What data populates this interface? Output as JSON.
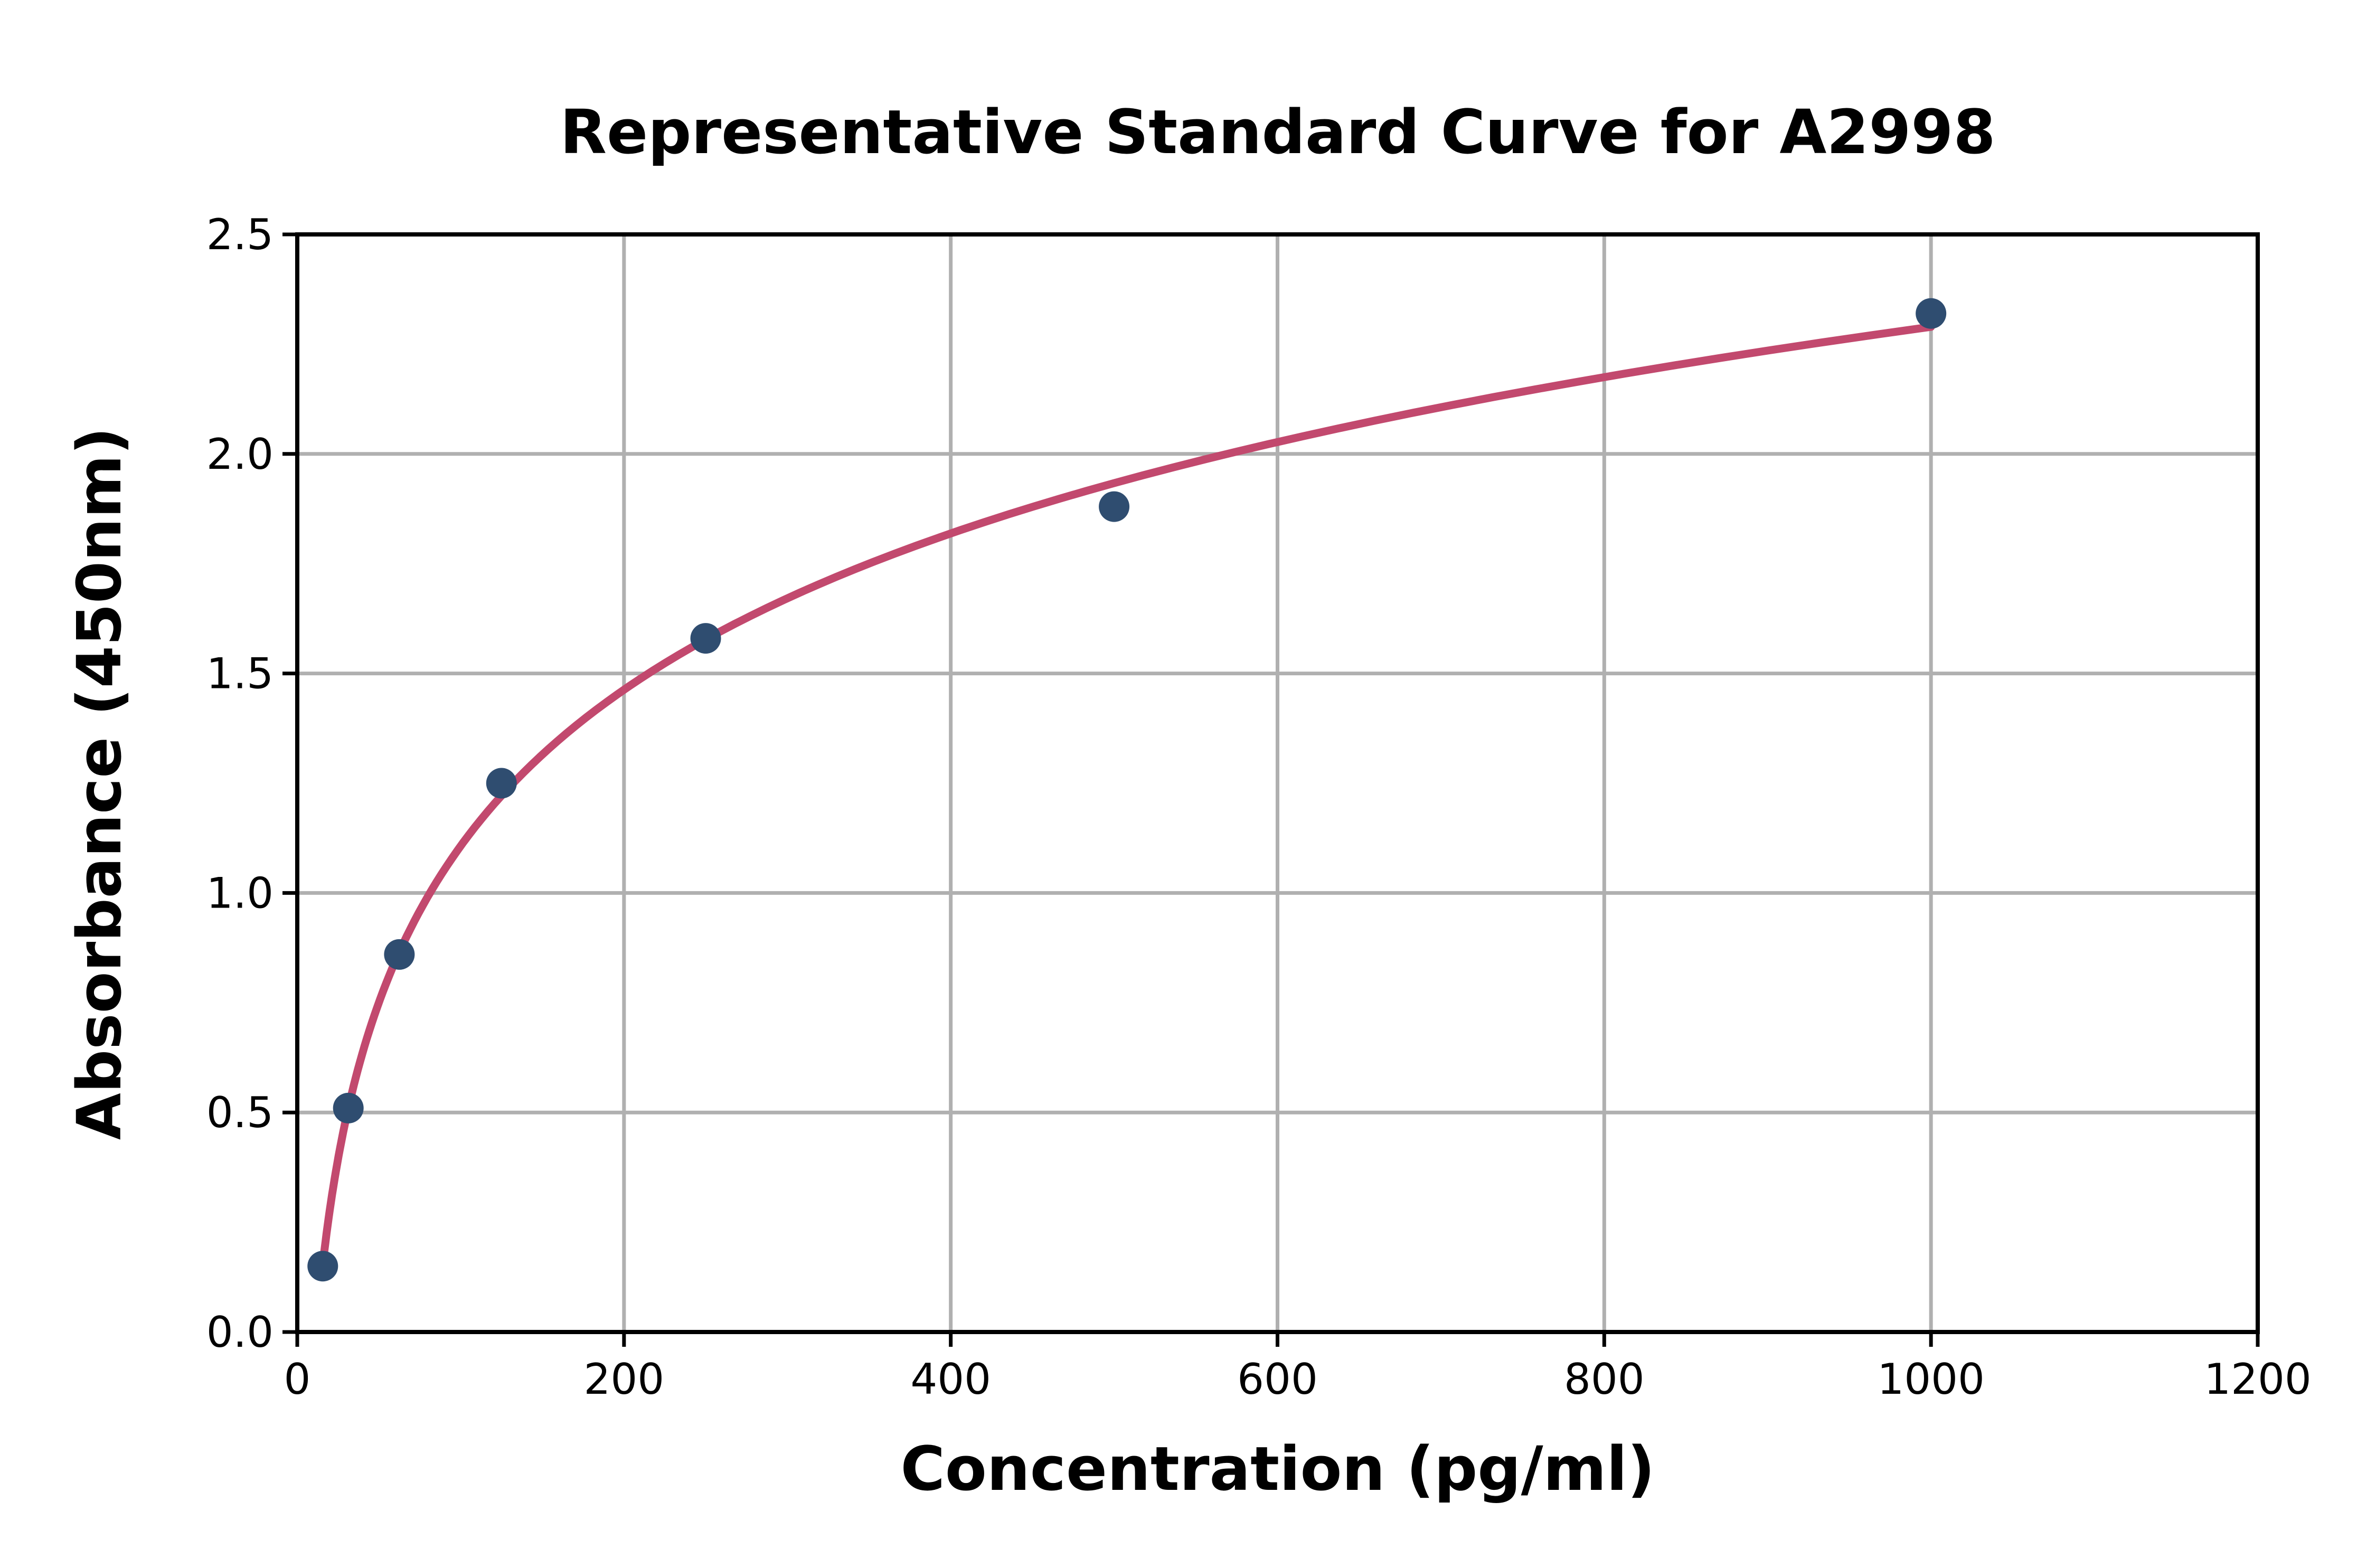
{
  "figure": {
    "background_color": "#ffffff",
    "title": "Representative Standard Curve for A2998"
  },
  "chart_data": {
    "type": "scatter",
    "title": "Representative Standard Curve for A2998",
    "xlabel": "Concentration (pg/ml)",
    "ylabel": "Absorbance (450nm)",
    "xlim": [
      0,
      1200
    ],
    "ylim": [
      0,
      2.5
    ],
    "xticks": [
      0,
      200,
      400,
      600,
      800,
      1000,
      1200
    ],
    "xtick_labels": [
      "0",
      "200",
      "400",
      "600",
      "800",
      "1000",
      "1200"
    ],
    "yticks": [
      0,
      0.5,
      1.0,
      1.5,
      2.0,
      2.5
    ],
    "ytick_labels": [
      "0.0",
      "0.5",
      "1.0",
      "1.5",
      "2.0",
      "2.5"
    ],
    "grid": true,
    "grid_color": "#b0b0b0",
    "axis_color": "#000000",
    "legend_position": "none",
    "series": [
      {
        "name": "standard-points",
        "kind": "scatter",
        "marker": "circle",
        "color": "#2f4d70",
        "x": [
          15.6,
          31.25,
          62.5,
          125,
          250,
          500,
          1000
        ],
        "y": [
          0.15,
          0.51,
          0.86,
          1.25,
          1.58,
          1.88,
          2.32
        ]
      },
      {
        "name": "fit-curve",
        "kind": "log-fit-line",
        "color": "#c2496e",
        "x_start": 15.6,
        "x_end": 1000
      }
    ]
  }
}
